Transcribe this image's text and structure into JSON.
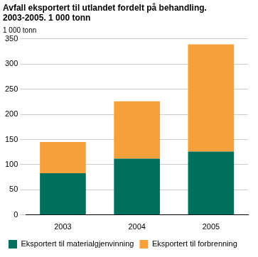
{
  "chart_data": {
    "type": "bar",
    "title": [
      "Avfall eksportert til utlandet fordelt på behandling.",
      "2003-2005. 1 000 tonn"
    ],
    "y_label": "1 000 tonn",
    "categories": [
      "2003",
      "2004",
      "2005"
    ],
    "series": [
      {
        "name": "Eksportert til materialgjenvinning",
        "color": "#00705c",
        "values": [
          83,
          112,
          126
        ]
      },
      {
        "name": "Eksportert til forbrenning",
        "color": "#f5a03a",
        "values": [
          62,
          114,
          213
        ]
      }
    ],
    "stacked": true,
    "ylim": [
      0,
      350
    ],
    "yticks": [
      0,
      50,
      100,
      150,
      200,
      250,
      300,
      350
    ],
    "grid": true,
    "legend": "bottom"
  }
}
